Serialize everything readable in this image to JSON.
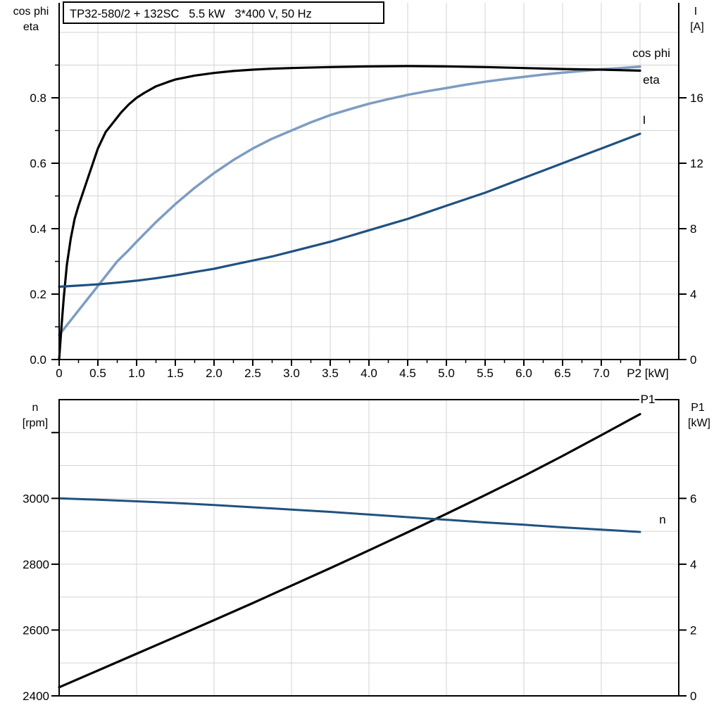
{
  "labels": {
    "y1_left_1": "cos phi",
    "y1_left_2": "eta",
    "y1_right_1": "I",
    "y1_right_2": "[A]",
    "x1_unit": "P2 [kW]",
    "y2_left_1": "n",
    "y2_left_2": "[rpm]",
    "y2_right_1": "P1",
    "y2_right_2": "[kW]"
  },
  "colors": {
    "light_blue": "#7D9CC3",
    "dark_blue": "#1F5181",
    "black": "#000000",
    "grid": "#D3D3D3",
    "background": "#FFFFFF"
  },
  "chart_data": [
    {
      "type": "line",
      "title": "TP32-580/2 + 132SC   5.5 kW   3*400 V, 50 Hz",
      "xlabel": "P2 [kW]",
      "x_axis": {
        "range": [
          0,
          8
        ],
        "tick_values": [
          0,
          0.5,
          1,
          1.5,
          2,
          2.5,
          3,
          3.5,
          4,
          4.5,
          5,
          5.5,
          6,
          6.5,
          7,
          7.5
        ],
        "tick_labels": [
          "0",
          "0.5",
          "1.0",
          "1.5",
          "2.0",
          "2.5",
          "3.0",
          "3.5",
          "4.0",
          "4.5",
          "5.0",
          "5.5",
          "6.0",
          "6.5",
          "7.0",
          ""
        ],
        "minor_tick_step": 0.25,
        "grid_step": 0.5
      },
      "y_left_axis": {
        "title_lines": [
          "cos phi",
          "eta"
        ],
        "range": [
          0,
          1.0
        ],
        "tick_values": [
          0,
          0.2,
          0.4,
          0.6,
          0.8
        ],
        "tick_labels": [
          "0.0",
          "0.2",
          "0.4",
          "0.6",
          "0.8"
        ],
        "minor_tick_step": 0.1,
        "grid_step": 0.1
      },
      "y_right_axis": {
        "title_lines": [
          "I",
          "[A]"
        ],
        "range": [
          0,
          20
        ],
        "tick_values": [
          0,
          4,
          8,
          12,
          16
        ],
        "tick_labels": [
          "0",
          "4",
          "8",
          "12",
          "16"
        ]
      },
      "grid": true,
      "legend_position": "curve-end-right",
      "series": [
        {
          "name": "cos phi",
          "axis": "left",
          "color_key": "light_blue",
          "points": [
            [
              0,
              0.075
            ],
            [
              0.15,
              0.12
            ],
            [
              0.3,
              0.165
            ],
            [
              0.45,
              0.21
            ],
            [
              0.6,
              0.255
            ],
            [
              0.75,
              0.3
            ],
            [
              0.9,
              0.335
            ],
            [
              1.0,
              0.36
            ],
            [
              1.25,
              0.42
            ],
            [
              1.5,
              0.475
            ],
            [
              1.75,
              0.525
            ],
            [
              2.0,
              0.57
            ],
            [
              2.25,
              0.61
            ],
            [
              2.5,
              0.645
            ],
            [
              2.75,
              0.675
            ],
            [
              3.0,
              0.7
            ],
            [
              3.25,
              0.725
            ],
            [
              3.5,
              0.747
            ],
            [
              3.75,
              0.765
            ],
            [
              4.0,
              0.782
            ],
            [
              4.25,
              0.796
            ],
            [
              4.5,
              0.809
            ],
            [
              4.75,
              0.82
            ],
            [
              5.0,
              0.83
            ],
            [
              5.25,
              0.84
            ],
            [
              5.5,
              0.849
            ],
            [
              5.75,
              0.857
            ],
            [
              6.0,
              0.864
            ],
            [
              6.25,
              0.871
            ],
            [
              6.5,
              0.877
            ],
            [
              6.75,
              0.882
            ],
            [
              7.0,
              0.887
            ],
            [
              7.25,
              0.891
            ],
            [
              7.5,
              0.895
            ]
          ]
        },
        {
          "name": "eta",
          "axis": "left",
          "color_key": "black",
          "points": [
            [
              0,
              0
            ],
            [
              0.03,
              0.1
            ],
            [
              0.06,
              0.19
            ],
            [
              0.1,
              0.29
            ],
            [
              0.15,
              0.37
            ],
            [
              0.2,
              0.43
            ],
            [
              0.25,
              0.47
            ],
            [
              0.3,
              0.505
            ],
            [
              0.35,
              0.54
            ],
            [
              0.4,
              0.575
            ],
            [
              0.45,
              0.61
            ],
            [
              0.5,
              0.645
            ],
            [
              0.6,
              0.695
            ],
            [
              0.7,
              0.725
            ],
            [
              0.8,
              0.755
            ],
            [
              0.9,
              0.78
            ],
            [
              1.0,
              0.8
            ],
            [
              1.1,
              0.815
            ],
            [
              1.25,
              0.835
            ],
            [
              1.4,
              0.848
            ],
            [
              1.5,
              0.856
            ],
            [
              1.75,
              0.868
            ],
            [
              2.0,
              0.876
            ],
            [
              2.25,
              0.882
            ],
            [
              2.5,
              0.886
            ],
            [
              2.75,
              0.889
            ],
            [
              3.0,
              0.891
            ],
            [
              3.5,
              0.894
            ],
            [
              4.0,
              0.896
            ],
            [
              4.5,
              0.897
            ],
            [
              5.0,
              0.896
            ],
            [
              5.5,
              0.894
            ],
            [
              6.0,
              0.891
            ],
            [
              6.5,
              0.888
            ],
            [
              7.0,
              0.886
            ],
            [
              7.5,
              0.883
            ]
          ]
        },
        {
          "name": "I",
          "axis": "right",
          "color_key": "dark_blue",
          "points": [
            [
              0,
              4.45
            ],
            [
              0.25,
              4.52
            ],
            [
              0.5,
              4.6
            ],
            [
              0.75,
              4.7
            ],
            [
              1.0,
              4.82
            ],
            [
              1.25,
              4.97
            ],
            [
              1.5,
              5.15
            ],
            [
              1.75,
              5.35
            ],
            [
              2.0,
              5.55
            ],
            [
              2.25,
              5.8
            ],
            [
              2.5,
              6.05
            ],
            [
              2.75,
              6.3
            ],
            [
              3.0,
              6.6
            ],
            [
              3.25,
              6.9
            ],
            [
              3.5,
              7.2
            ],
            [
              3.75,
              7.55
            ],
            [
              4.0,
              7.9
            ],
            [
              4.25,
              8.25
            ],
            [
              4.5,
              8.6
            ],
            [
              4.75,
              9.0
            ],
            [
              5.0,
              9.4
            ],
            [
              5.25,
              9.8
            ],
            [
              5.5,
              10.2
            ],
            [
              5.75,
              10.65
            ],
            [
              6.0,
              11.1
            ],
            [
              6.25,
              11.55
            ],
            [
              6.5,
              12.0
            ],
            [
              6.75,
              12.45
            ],
            [
              7.0,
              12.9
            ],
            [
              7.25,
              13.35
            ],
            [
              7.5,
              13.8
            ]
          ]
        }
      ]
    },
    {
      "type": "line",
      "title": "",
      "xlabel": "",
      "x_axis": {
        "range": [
          0,
          8
        ],
        "tick_values": [],
        "tick_labels": [],
        "grid_step": 1.0
      },
      "y_left_axis": {
        "title_lines": [
          "n",
          "[rpm]"
        ],
        "range": [
          2400,
          3300
        ],
        "tick_values": [
          2400,
          2600,
          2800,
          3000,
          3200
        ],
        "tick_labels": [
          "2400",
          "2600",
          "2800",
          "3000",
          ""
        ],
        "grid_step": 100
      },
      "y_right_axis": {
        "title_lines": [
          "P1",
          "[kW]"
        ],
        "range": [
          0,
          9
        ],
        "tick_values": [
          0,
          2,
          4,
          6
        ],
        "tick_labels": [
          "0",
          "2",
          "4",
          "6"
        ]
      },
      "grid": true,
      "legend_position": "curve-end-right",
      "series": [
        {
          "name": "P1",
          "axis": "right",
          "color_key": "black",
          "points": [
            [
              0,
              0.26
            ],
            [
              0.5,
              0.77
            ],
            [
              1.0,
              1.28
            ],
            [
              1.5,
              1.79
            ],
            [
              2.0,
              2.3
            ],
            [
              2.5,
              2.82
            ],
            [
              3.0,
              3.35
            ],
            [
              3.5,
              3.88
            ],
            [
              4.0,
              4.42
            ],
            [
              4.5,
              4.97
            ],
            [
              5.0,
              5.53
            ],
            [
              5.5,
              6.1
            ],
            [
              6.0,
              6.68
            ],
            [
              6.5,
              7.29
            ],
            [
              7.0,
              7.92
            ],
            [
              7.5,
              8.56
            ]
          ]
        },
        {
          "name": "n",
          "axis": "left",
          "color_key": "dark_blue",
          "points": [
            [
              0,
              3000
            ],
            [
              0.5,
              2996
            ],
            [
              1.0,
              2991
            ],
            [
              1.5,
              2986
            ],
            [
              2.0,
              2980
            ],
            [
              2.5,
              2973
            ],
            [
              3.0,
              2966
            ],
            [
              3.5,
              2959
            ],
            [
              4.0,
              2951
            ],
            [
              4.5,
              2943
            ],
            [
              5.0,
              2935
            ],
            [
              5.5,
              2927
            ],
            [
              6.0,
              2920
            ],
            [
              6.5,
              2912
            ],
            [
              7.0,
              2905
            ],
            [
              7.5,
              2898
            ]
          ]
        }
      ]
    }
  ]
}
